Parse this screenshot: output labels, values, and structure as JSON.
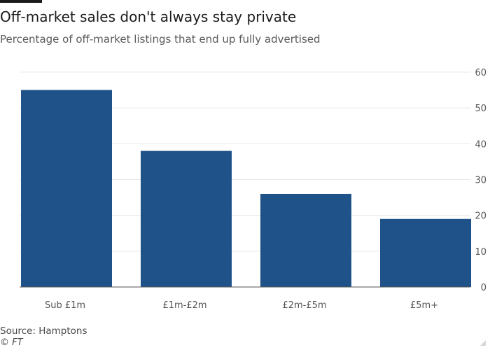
{
  "header": {
    "title": "Off-market sales don't always stay private",
    "subtitle": "Percentage of off-market listings that end up fully advertised"
  },
  "footer": {
    "source": "Source: Hamptons",
    "copyright": "© FT"
  },
  "colors": {
    "bar": "#1f5288",
    "grid": "#e8e8e8",
    "baseline": "#555555",
    "tick_text": "#555555"
  },
  "chart_data": {
    "type": "bar",
    "title": "Off-market sales don't always stay private",
    "subtitle": "Percentage of off-market listings that end up fully advertised",
    "categories": [
      "Sub £1m",
      "£1m-£2m",
      "£2m-£5m",
      "£5m+"
    ],
    "values": [
      55,
      38,
      26,
      19
    ],
    "xlabel": "",
    "ylabel": "",
    "ylim": [
      0,
      60
    ],
    "yticks": [
      0,
      10,
      20,
      30,
      40,
      50,
      60
    ],
    "grid": true,
    "y_axis_side": "right",
    "legend": "none"
  }
}
